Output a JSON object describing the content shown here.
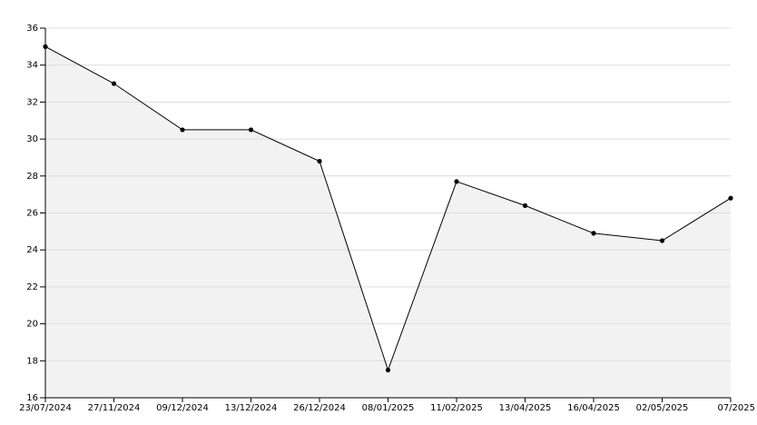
{
  "chart_data": {
    "type": "area-line",
    "categories": [
      "23/07/2024",
      "27/11/2024",
      "09/12/2024",
      "13/12/2024",
      "26/12/2024",
      "08/01/2025",
      "11/02/2025",
      "13/04/2025",
      "16/04/2025",
      "02/05/2025",
      "07/2025"
    ],
    "values": [
      35,
      33,
      30.5,
      30.5,
      28.8,
      17.5,
      27.7,
      26.4,
      24.9,
      24.5,
      26.8
    ],
    "color": "#000000",
    "fill": "#f2f2f2",
    "ylim": [
      16,
      36
    ],
    "yticks": [
      16,
      18,
      20,
      22,
      24,
      26,
      28,
      30,
      32,
      34,
      36
    ],
    "grid": true
  }
}
